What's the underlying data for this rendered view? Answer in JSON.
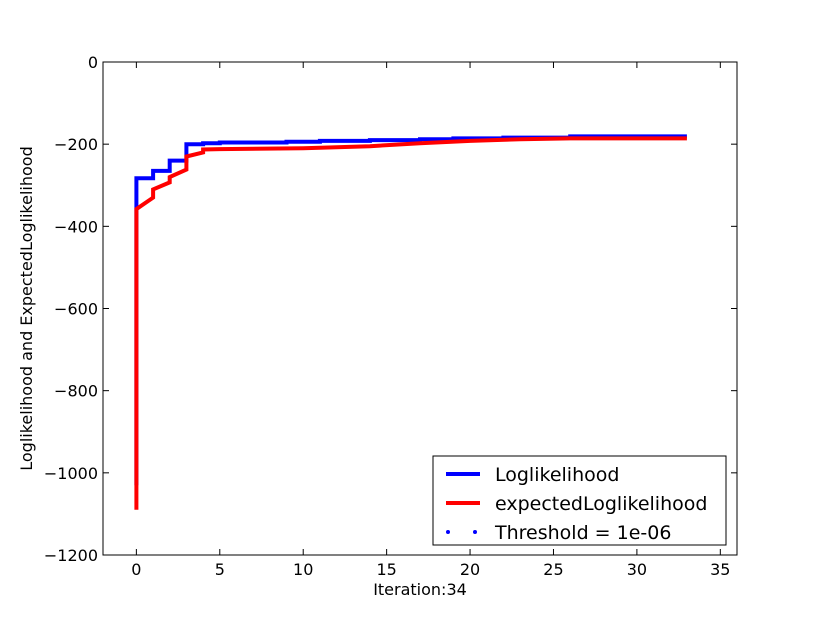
{
  "chart_data": {
    "type": "line",
    "title": "",
    "xlabel": "Iteration:34",
    "ylabel": "Loglikelihood and ExpectedLoglikelihood",
    "xlim": [
      -2,
      36
    ],
    "ylim": [
      -1200,
      0
    ],
    "xticks": [
      0,
      5,
      10,
      15,
      20,
      25,
      30,
      35
    ],
    "yticks": [
      0,
      -200,
      -400,
      -600,
      -800,
      -1000,
      -1200
    ],
    "grid": false,
    "legend_position": "lower-right",
    "series": [
      {
        "name": "Loglikelihood",
        "color": "#0000ff",
        "style": "solid",
        "x": [
          0,
          0,
          0,
          1,
          1,
          2,
          2,
          3,
          3,
          4,
          4,
          5,
          5,
          9,
          9,
          11,
          11,
          14,
          14,
          17,
          17,
          19,
          19,
          22,
          22,
          26,
          26,
          33
        ],
        "y": [
          -1030,
          -283,
          -283,
          -283,
          -265,
          -265,
          -240,
          -240,
          -200,
          -200,
          -198,
          -198,
          -196,
          -196,
          -194,
          -194,
          -192,
          -192,
          -190,
          -190,
          -188,
          -188,
          -186,
          -186,
          -184,
          -184,
          -181,
          -181
        ]
      },
      {
        "name": "expectedLoglikelihood",
        "color": "#ff0000",
        "style": "solid",
        "x": [
          0,
          0,
          1,
          1,
          2,
          2,
          3,
          3,
          4,
          4,
          5,
          10,
          14,
          17,
          20,
          23,
          26,
          30,
          33
        ],
        "y": [
          -1090,
          -358,
          -330,
          -310,
          -293,
          -280,
          -262,
          -230,
          -220,
          -213,
          -212,
          -210,
          -205,
          -198,
          -192,
          -188,
          -186,
          -186,
          -186
        ]
      },
      {
        "name": "Threshold = 1e-06",
        "color": "#0000ff",
        "style": "dotted",
        "x": [],
        "y": []
      }
    ]
  }
}
